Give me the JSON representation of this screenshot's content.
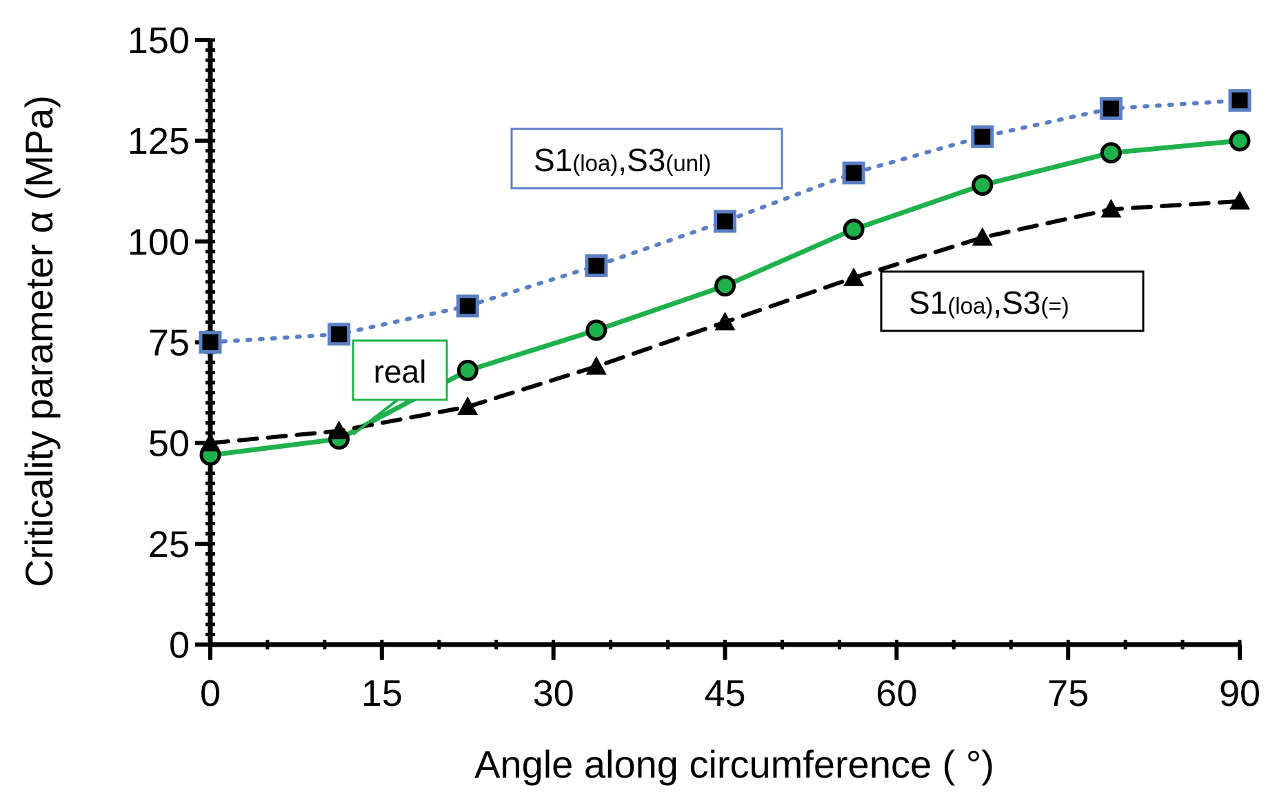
{
  "chart_data": {
    "type": "line",
    "title": "",
    "xlabel": "Angle along circumference ( °)",
    "ylabel": "Criticality parameter α (MPa)",
    "xlim": [
      0,
      90
    ],
    "ylim": [
      0,
      150
    ],
    "x_ticks": [
      "0",
      "15",
      "30",
      "45",
      "60",
      "75",
      "90"
    ],
    "y_ticks": [
      "0",
      "25",
      "50",
      "75",
      "100",
      "125",
      "150"
    ],
    "x": [
      0,
      11.25,
      22.5,
      33.75,
      45,
      56.25,
      67.5,
      78.75,
      90
    ],
    "series": [
      {
        "name": "S1(loa),S3(unl)",
        "name_main_1": "S1",
        "name_sub_1": "(loa)",
        "name_main_2": ",S3",
        "name_sub_2": "(unl)",
        "values": [
          75,
          77,
          84,
          94,
          105,
          117,
          126,
          133,
          135
        ],
        "color": "#5b7fc4",
        "marker": "square",
        "line_style": "dotted"
      },
      {
        "name": "real",
        "values": [
          47,
          51,
          68,
          78,
          89,
          103,
          114,
          122,
          125
        ],
        "color": "#1fb14b",
        "marker": "circle",
        "line_style": "solid"
      },
      {
        "name": "S1(loa),S3(=)",
        "name_main_1": "S1",
        "name_sub_1": "(loa)",
        "name_main_2": ",S3",
        "name_sub_2": "(=)",
        "values": [
          50,
          53,
          59,
          69,
          80,
          91,
          101,
          108,
          110
        ],
        "color": "#000000",
        "marker": "triangle",
        "line_style": "dashed"
      }
    ],
    "grid": false,
    "legend": "inline labels"
  }
}
